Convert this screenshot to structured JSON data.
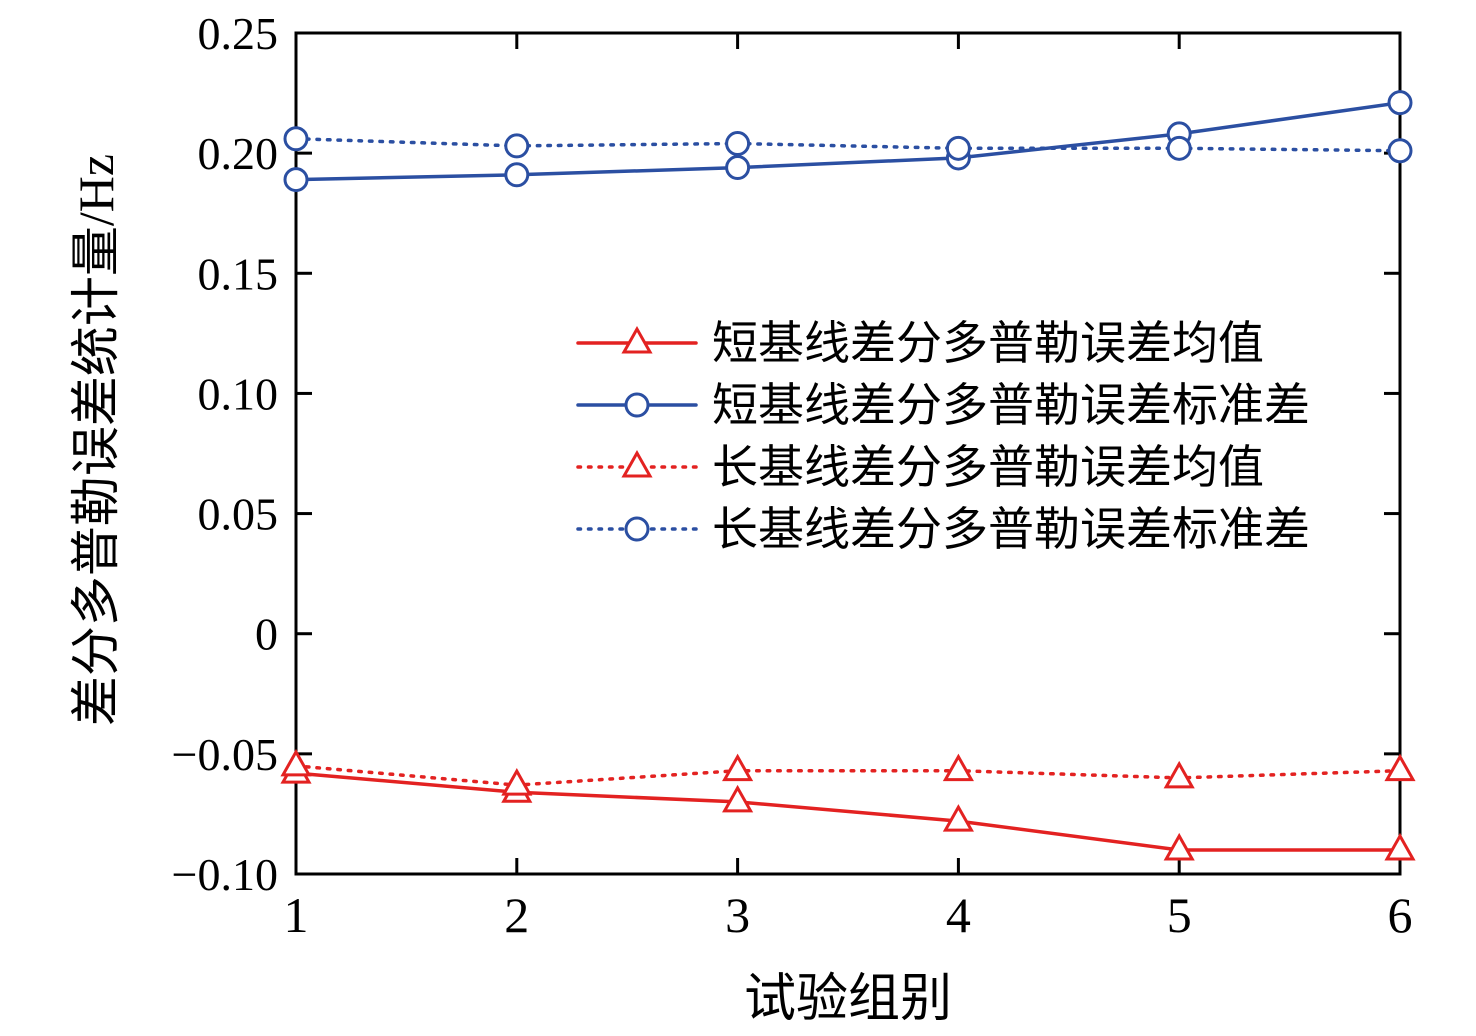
{
  "chart_data": {
    "type": "line",
    "title": "",
    "xlabel": "试验组别",
    "ylabel": "差分多普勒误差统计量/Hz",
    "x": [
      1,
      2,
      3,
      4,
      5,
      6
    ],
    "xlim": [
      1,
      6
    ],
    "ylim": [
      -0.1,
      0.25
    ],
    "xticks": [
      1,
      2,
      3,
      4,
      5,
      6
    ],
    "xtick_labels": [
      "1",
      "2",
      "3",
      "4",
      "5",
      "6"
    ],
    "yticks": [
      -0.1,
      -0.05,
      0,
      0.05,
      0.1,
      0.15,
      0.2,
      0.25
    ],
    "ytick_labels": [
      "−0.10",
      "−0.05",
      "0",
      "0.05",
      "0.10",
      "0.15",
      "0.20",
      "0.25"
    ],
    "grid": false,
    "legend_position": "center",
    "frame_color": "#000000",
    "series": [
      {
        "name": "短基线差分多普勒误差均值",
        "color": "#e32221",
        "line": "solid",
        "marker": "triangle",
        "values": [
          -0.058,
          -0.066,
          -0.07,
          -0.078,
          -0.09,
          -0.09
        ]
      },
      {
        "name": "短基线差分多普勒误差标准差",
        "color": "#2b4fa2",
        "line": "solid",
        "marker": "circle",
        "values": [
          0.189,
          0.191,
          0.194,
          0.198,
          0.208,
          0.221
        ]
      },
      {
        "name": "长基线差分多普勒误差均值",
        "color": "#e32221",
        "line": "dotted",
        "marker": "triangle",
        "values": [
          -0.055,
          -0.063,
          -0.057,
          -0.057,
          -0.06,
          -0.057
        ]
      },
      {
        "name": "长基线差分多普勒误差标准差",
        "color": "#2b4fa2",
        "line": "dotted",
        "marker": "circle",
        "values": [
          0.206,
          0.203,
          0.204,
          0.202,
          0.202,
          0.201
        ]
      }
    ]
  }
}
